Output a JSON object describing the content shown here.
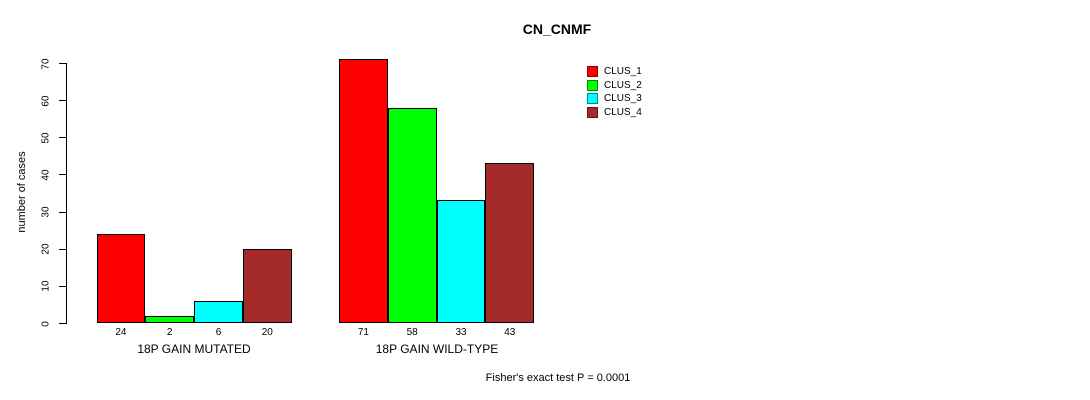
{
  "figure": {
    "background": "#FFFFFF",
    "axis_color": "#000000",
    "text_color": "#000000"
  },
  "chart_data": {
    "type": "bar",
    "title": "CN_CNMF",
    "xlabel": "",
    "ylabel": "number of cases",
    "ylim": [
      0,
      70
    ],
    "yticks": [
      0,
      10,
      20,
      30,
      40,
      50,
      60,
      70
    ],
    "grid": false,
    "legend_position": "top-right",
    "series_names": [
      "CLUS_1",
      "CLUS_2",
      "CLUS_3",
      "CLUS_4"
    ],
    "colors": [
      "#FF0000",
      "#00FF00",
      "#00FFFF",
      "#A52A2A"
    ],
    "groups": [
      {
        "label": "18P GAIN MUTATED",
        "values": [
          24,
          2,
          6,
          20
        ]
      },
      {
        "label": "18P GAIN WILD-TYPE",
        "values": [
          71,
          58,
          33,
          43
        ]
      }
    ],
    "bar_value_labels": [
      [
        "24",
        "2",
        "6",
        "20"
      ],
      [
        "71",
        "58",
        "33",
        "43"
      ]
    ],
    "annotation": "Fisher's exact test P = 0.0001"
  }
}
